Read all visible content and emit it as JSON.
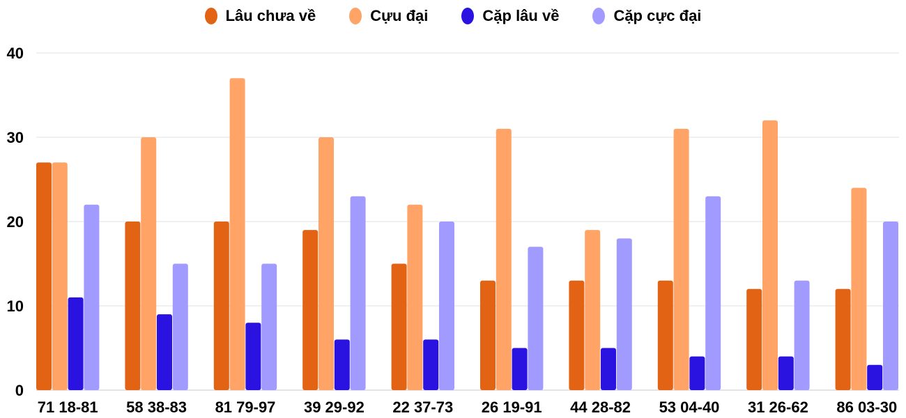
{
  "chart_data": {
    "type": "bar",
    "categories": [
      "71 18-81",
      "58 38-83",
      "81 79-97",
      "39 29-92",
      "22 37-73",
      "26 19-91",
      "44 28-82",
      "53 04-40",
      "31 26-62",
      "86 03-30"
    ],
    "series": [
      {
        "name": "Lâu chưa về",
        "color": "#e26314",
        "values": [
          27,
          20,
          20,
          19,
          15,
          13,
          13,
          13,
          12,
          12
        ]
      },
      {
        "name": "Cựu đại",
        "color": "#ffa366",
        "values": [
          27,
          30,
          37,
          30,
          22,
          31,
          19,
          31,
          32,
          24
        ]
      },
      {
        "name": "Cặp lâu về",
        "color": "#2a12e0",
        "values": [
          11,
          9,
          8,
          6,
          6,
          5,
          5,
          4,
          4,
          3
        ]
      },
      {
        "name": "Cặp cực đại",
        "color": "#a29bff",
        "values": [
          22,
          15,
          15,
          23,
          20,
          17,
          18,
          23,
          13,
          20
        ]
      }
    ],
    "yticks": [
      "0",
      "10",
      "20",
      "30",
      "40"
    ],
    "ylim": [
      0,
      40
    ],
    "grid": true,
    "legend_position": "top"
  }
}
